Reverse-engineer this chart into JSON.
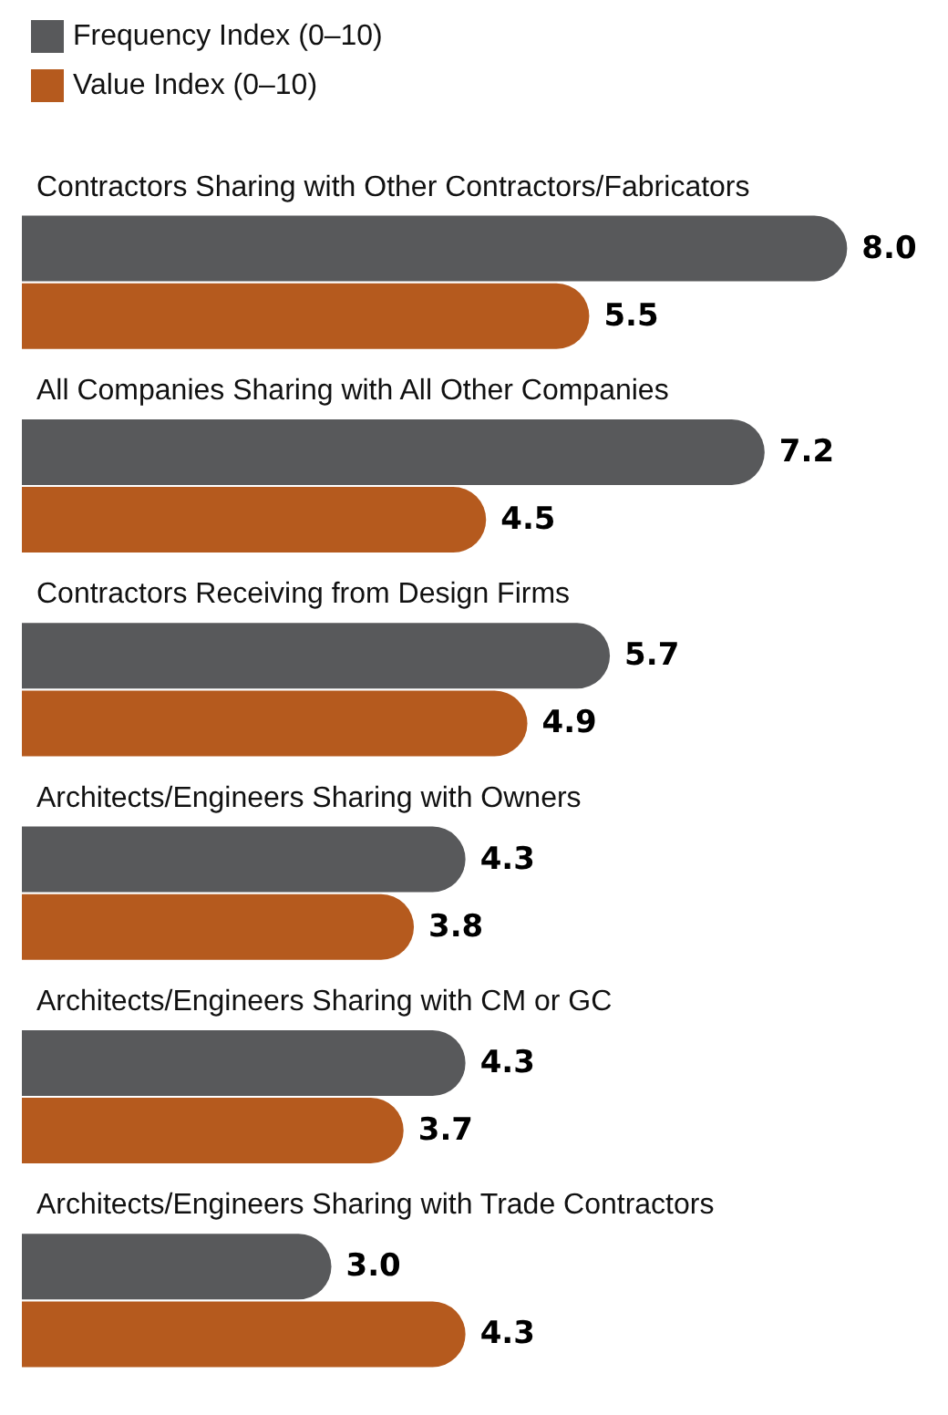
{
  "chart_data": {
    "type": "bar",
    "orientation": "horizontal",
    "legend": "top left",
    "categories": [
      "Contractors Sharing with Other Contractors/Fabricators",
      "All Companies Sharing with All Other Companies",
      "Contractors Receiving from Design Firms",
      "Architects/Engineers Sharing with Owners",
      "Architects/Engineers Sharing with CM or GC",
      "Architects/Engineers Sharing with Trade Contractors"
    ],
    "series": [
      {
        "name": "Frequency Index (0–10)",
        "color": "#58595b",
        "values": [
          8.0,
          7.2,
          5.7,
          4.3,
          4.3,
          3.0
        ],
        "value_labels": [
          "8.0",
          "7.2",
          "5.7",
          "4.3",
          "4.3",
          "3.0"
        ]
      },
      {
        "name": "Value Index (0–10)",
        "color": "#b55a1e",
        "values": [
          5.5,
          4.5,
          4.9,
          3.8,
          3.7,
          4.3
        ],
        "value_labels": [
          "5.5",
          "4.5",
          "4.9",
          "3.8",
          "3.7",
          "4.3"
        ]
      }
    ]
  }
}
